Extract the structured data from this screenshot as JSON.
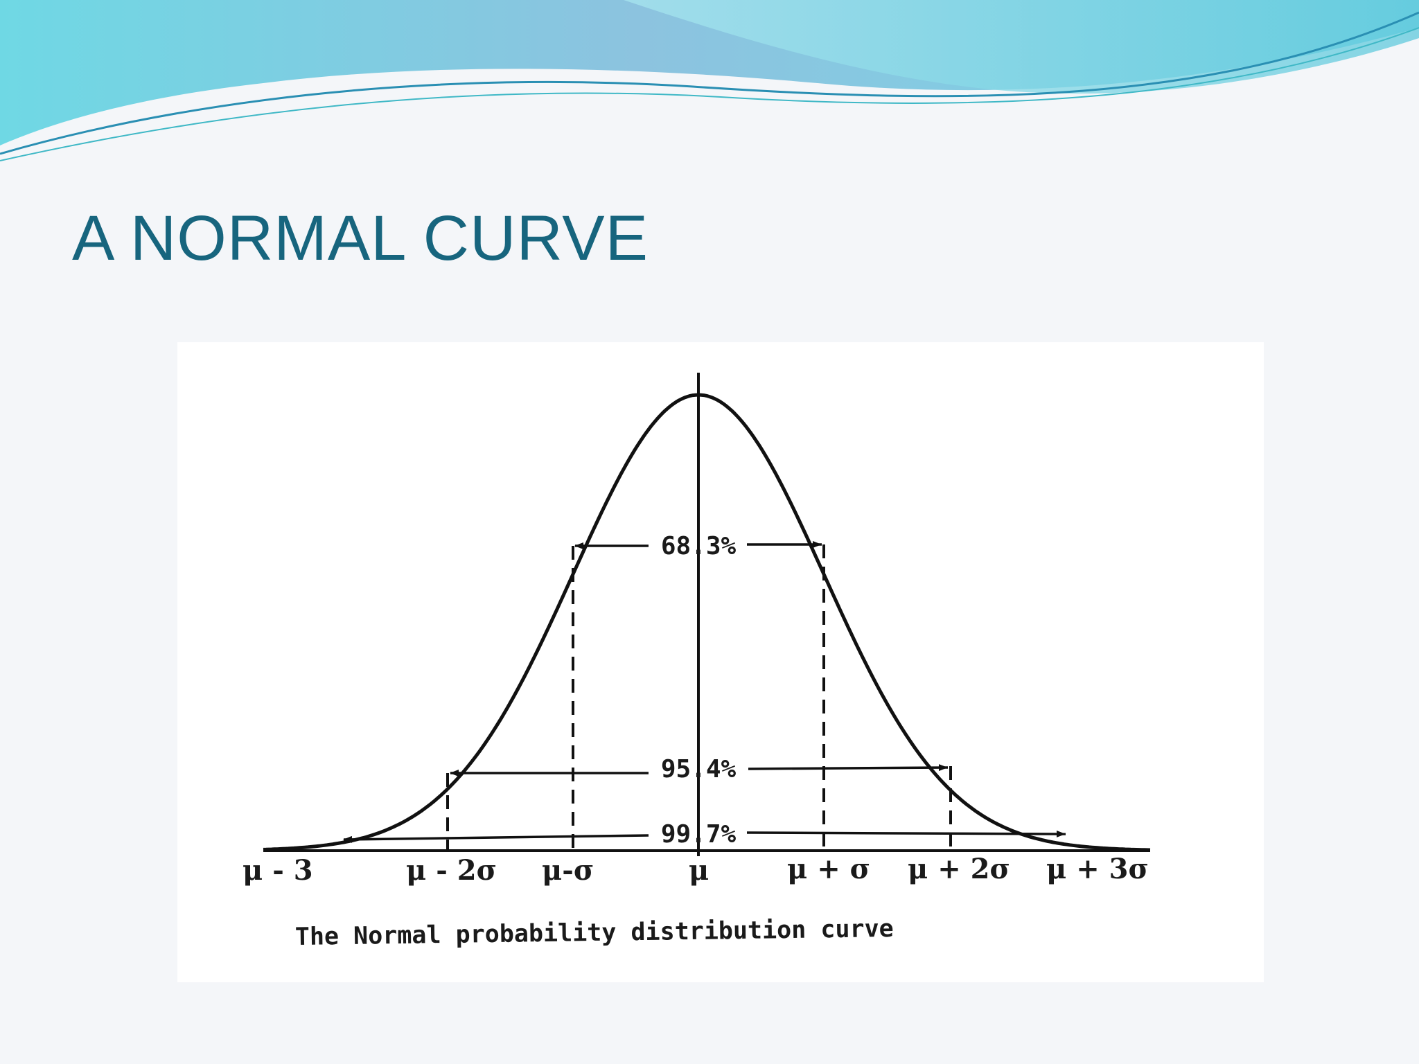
{
  "slide": {
    "title": "A NORMAL CURVE",
    "title_color": "#17657e",
    "accent_colors": [
      "#7fc6df",
      "#6fd6e3",
      "#2a8fb3"
    ]
  },
  "figure": {
    "caption": "The Normal probability distribution curve",
    "axis_labels": [
      "μ - 3",
      "μ - 2σ",
      "μ-σ",
      "μ",
      "μ + σ",
      "μ + 2σ",
      "μ + 3σ"
    ],
    "intervals": [
      {
        "label": "68.3%",
        "from_sigma": -1,
        "to_sigma": 1
      },
      {
        "label": "95.4%",
        "from_sigma": -2,
        "to_sigma": 2
      },
      {
        "label": "99.7%",
        "from_sigma": -3,
        "to_sigma": 3
      }
    ]
  }
}
